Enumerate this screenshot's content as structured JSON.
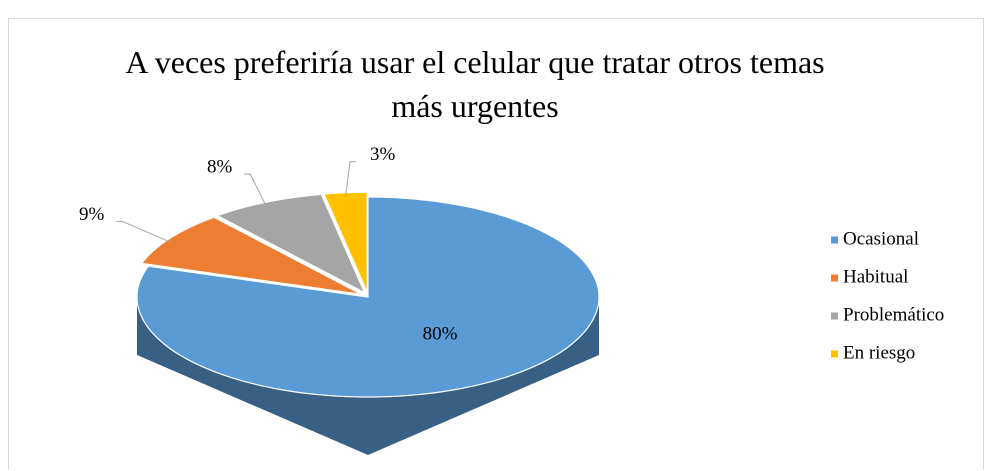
{
  "chart_data": {
    "type": "pie3d",
    "title": "A veces preferiría usar el celular que tratar otros temas más urgentes",
    "categories": [
      "Ocasional",
      "Habitual",
      "Problemático",
      "En riesgo"
    ],
    "values": [
      80,
      9,
      8,
      3
    ],
    "value_labels": [
      "80%",
      "9%",
      "8%",
      "3%"
    ],
    "colors": [
      "#5b9bd5",
      "#ed7d31",
      "#a5a5a5",
      "#ffc000"
    ],
    "legend": "right"
  }
}
